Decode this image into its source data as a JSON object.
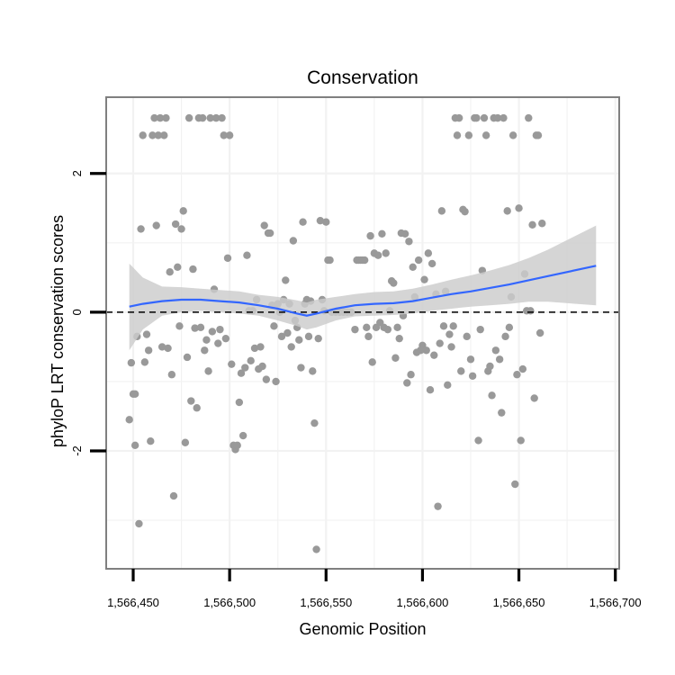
{
  "chart_data": {
    "type": "scatter",
    "title": "Conservation",
    "xlabel": "Genomic Position",
    "ylabel": "phyloP LRT conservation scores",
    "xlim": [
      1566436,
      1566702
    ],
    "ylim": [
      -3.7,
      3.1
    ],
    "x_ticks": [
      1566450,
      1566500,
      1566550,
      1566600,
      1566650,
      1566700
    ],
    "x_tick_labels": [
      "1,566,450",
      "1,566,500",
      "1,566,550",
      "1,566,600",
      "1,566,650",
      "1,566,700"
    ],
    "y_ticks": [
      -2,
      0,
      2
    ],
    "y_tick_labels": [
      "-2",
      "0",
      "2"
    ],
    "grid": true,
    "legend": "none",
    "colors": {
      "points": "#999999",
      "smooth_line": "#3366ff",
      "ribbon": "#cccccc",
      "reference_line": "#000000",
      "panel_border": "#7f7f7f",
      "grid": "#f2f2f2"
    },
    "reference_line_y": 0,
    "points": [
      {
        "x": 1566448,
        "y": -1.55
      },
      {
        "x": 1566449,
        "y": -0.73
      },
      {
        "x": 1566450,
        "y": -1.18
      },
      {
        "x": 1566451,
        "y": -1.92
      },
      {
        "x": 1566451,
        "y": -1.18
      },
      {
        "x": 1566452,
        "y": -0.35
      },
      {
        "x": 1566453,
        "y": -3.05
      },
      {
        "x": 1566454,
        "y": 1.2
      },
      {
        "x": 1566455,
        "y": 2.55
      },
      {
        "x": 1566456,
        "y": -0.72
      },
      {
        "x": 1566457,
        "y": -0.32
      },
      {
        "x": 1566458,
        "y": -0.55
      },
      {
        "x": 1566459,
        "y": -1.86
      },
      {
        "x": 1566460,
        "y": 2.55
      },
      {
        "x": 1566461,
        "y": 2.8
      },
      {
        "x": 1566462,
        "y": 1.25
      },
      {
        "x": 1566463,
        "y": 2.55
      },
      {
        "x": 1566464,
        "y": 2.8
      },
      {
        "x": 1566465,
        "y": -0.5
      },
      {
        "x": 1566466,
        "y": 2.55
      },
      {
        "x": 1566467,
        "y": 2.8
      },
      {
        "x": 1566468,
        "y": -0.52
      },
      {
        "x": 1566469,
        "y": 0.58
      },
      {
        "x": 1566470,
        "y": -0.9
      },
      {
        "x": 1566471,
        "y": -2.65
      },
      {
        "x": 1566472,
        "y": 1.27
      },
      {
        "x": 1566473,
        "y": 0.65
      },
      {
        "x": 1566474,
        "y": -0.2
      },
      {
        "x": 1566475,
        "y": 1.2
      },
      {
        "x": 1566476,
        "y": 1.46
      },
      {
        "x": 1566477,
        "y": -1.88
      },
      {
        "x": 1566478,
        "y": -0.65
      },
      {
        "x": 1566479,
        "y": 2.8
      },
      {
        "x": 1566480,
        "y": -1.28
      },
      {
        "x": 1566481,
        "y": 0.62
      },
      {
        "x": 1566482,
        "y": -0.23
      },
      {
        "x": 1566483,
        "y": -1.38
      },
      {
        "x": 1566484,
        "y": 2.8
      },
      {
        "x": 1566485,
        "y": -0.22
      },
      {
        "x": 1566486,
        "y": 2.8
      },
      {
        "x": 1566487,
        "y": -0.55
      },
      {
        "x": 1566488,
        "y": -0.4
      },
      {
        "x": 1566489,
        "y": -0.85
      },
      {
        "x": 1566490,
        "y": 2.8
      },
      {
        "x": 1566491,
        "y": -0.28
      },
      {
        "x": 1566492,
        "y": 0.33
      },
      {
        "x": 1566493,
        "y": 2.8
      },
      {
        "x": 1566494,
        "y": -0.45
      },
      {
        "x": 1566495,
        "y": -0.25
      },
      {
        "x": 1566496,
        "y": 2.8
      },
      {
        "x": 1566497,
        "y": 2.55
      },
      {
        "x": 1566498,
        "y": -0.38
      },
      {
        "x": 1566499,
        "y": 0.78
      },
      {
        "x": 1566500,
        "y": 2.55
      },
      {
        "x": 1566501,
        "y": -0.75
      },
      {
        "x": 1566502,
        "y": -1.92
      },
      {
        "x": 1566503,
        "y": -1.98
      },
      {
        "x": 1566504,
        "y": -1.92
      },
      {
        "x": 1566505,
        "y": -1.3
      },
      {
        "x": 1566506,
        "y": -0.88
      },
      {
        "x": 1566507,
        "y": -1.78
      },
      {
        "x": 1566508,
        "y": -0.8
      },
      {
        "x": 1566509,
        "y": 0.82
      },
      {
        "x": 1566510,
        "y": 0.02
      },
      {
        "x": 1566511,
        "y": -0.7
      },
      {
        "x": 1566512,
        "y": 0.02
      },
      {
        "x": 1566513,
        "y": -0.52
      },
      {
        "x": 1566514,
        "y": 0.18
      },
      {
        "x": 1566515,
        "y": -0.82
      },
      {
        "x": 1566516,
        "y": -0.5
      },
      {
        "x": 1566517,
        "y": -0.78
      },
      {
        "x": 1566518,
        "y": 1.25
      },
      {
        "x": 1566519,
        "y": -0.97
      },
      {
        "x": 1566520,
        "y": 1.14
      },
      {
        "x": 1566521,
        "y": 1.14
      },
      {
        "x": 1566522,
        "y": 0.1
      },
      {
        "x": 1566523,
        "y": -0.2
      },
      {
        "x": 1566524,
        "y": -1.0
      },
      {
        "x": 1566525,
        "y": 0.12
      },
      {
        "x": 1566526,
        "y": 0.0
      },
      {
        "x": 1566527,
        "y": -0.35
      },
      {
        "x": 1566528,
        "y": 0.18
      },
      {
        "x": 1566529,
        "y": 0.46
      },
      {
        "x": 1566530,
        "y": -0.3
      },
      {
        "x": 1566531,
        "y": 0.12
      },
      {
        "x": 1566532,
        "y": -0.5
      },
      {
        "x": 1566533,
        "y": 1.03
      },
      {
        "x": 1566534,
        "y": -0.12
      },
      {
        "x": 1566535,
        "y": -0.22
      },
      {
        "x": 1566536,
        "y": -0.4
      },
      {
        "x": 1566537,
        "y": -0.8
      },
      {
        "x": 1566538,
        "y": 1.3
      },
      {
        "x": 1566539,
        "y": 0.12
      },
      {
        "x": 1566540,
        "y": 0.18
      },
      {
        "x": 1566541,
        "y": -0.35
      },
      {
        "x": 1566542,
        "y": 0.16
      },
      {
        "x": 1566543,
        "y": -0.85
      },
      {
        "x": 1566544,
        "y": -1.6
      },
      {
        "x": 1566545,
        "y": -3.42
      },
      {
        "x": 1566546,
        "y": -0.38
      },
      {
        "x": 1566547,
        "y": 1.32
      },
      {
        "x": 1566548,
        "y": 0.18
      },
      {
        "x": 1566549,
        "y": 0.02
      },
      {
        "x": 1566550,
        "y": 1.3
      },
      {
        "x": 1566551,
        "y": 0.75
      },
      {
        "x": 1566552,
        "y": 0.75
      },
      {
        "x": 1566553,
        "y": 0.0
      },
      {
        "x": 1566555,
        "y": 0.0
      },
      {
        "x": 1566557,
        "y": 0.0
      },
      {
        "x": 1566559,
        "y": 0.0
      },
      {
        "x": 1566561,
        "y": 0.0
      },
      {
        "x": 1566563,
        "y": 0.0
      },
      {
        "x": 1566565,
        "y": -0.25
      },
      {
        "x": 1566566,
        "y": 0.75
      },
      {
        "x": 1566567,
        "y": 0.75
      },
      {
        "x": 1566568,
        "y": 0.75
      },
      {
        "x": 1566569,
        "y": 0.75
      },
      {
        "x": 1566570,
        "y": 0.75
      },
      {
        "x": 1566571,
        "y": -0.22
      },
      {
        "x": 1566572,
        "y": -0.35
      },
      {
        "x": 1566573,
        "y": 1.1
      },
      {
        "x": 1566574,
        "y": -0.72
      },
      {
        "x": 1566575,
        "y": 0.85
      },
      {
        "x": 1566576,
        "y": -0.22
      },
      {
        "x": 1566577,
        "y": 0.82
      },
      {
        "x": 1566578,
        "y": -0.15
      },
      {
        "x": 1566579,
        "y": 1.13
      },
      {
        "x": 1566580,
        "y": -0.22
      },
      {
        "x": 1566581,
        "y": 0.85
      },
      {
        "x": 1566582,
        "y": -0.25
      },
      {
        "x": 1566583,
        "y": 0.02
      },
      {
        "x": 1566584,
        "y": 0.45
      },
      {
        "x": 1566585,
        "y": 0.42
      },
      {
        "x": 1566586,
        "y": -0.66
      },
      {
        "x": 1566587,
        "y": -0.22
      },
      {
        "x": 1566588,
        "y": -0.38
      },
      {
        "x": 1566589,
        "y": 1.14
      },
      {
        "x": 1566590,
        "y": -0.05
      },
      {
        "x": 1566591,
        "y": 1.13
      },
      {
        "x": 1566592,
        "y": -1.02
      },
      {
        "x": 1566593,
        "y": 1.02
      },
      {
        "x": 1566594,
        "y": -0.9
      },
      {
        "x": 1566595,
        "y": 0.65
      },
      {
        "x": 1566596,
        "y": 0.22
      },
      {
        "x": 1566597,
        "y": -0.58
      },
      {
        "x": 1566598,
        "y": 0.75
      },
      {
        "x": 1566599,
        "y": -0.55
      },
      {
        "x": 1566600,
        "y": -0.48
      },
      {
        "x": 1566601,
        "y": 0.47
      },
      {
        "x": 1566602,
        "y": -0.55
      },
      {
        "x": 1566603,
        "y": 0.85
      },
      {
        "x": 1566604,
        "y": -1.12
      },
      {
        "x": 1566605,
        "y": 0.7
      },
      {
        "x": 1566606,
        "y": -0.62
      },
      {
        "x": 1566607,
        "y": 0.26
      },
      {
        "x": 1566608,
        "y": -2.8
      },
      {
        "x": 1566609,
        "y": -0.45
      },
      {
        "x": 1566610,
        "y": 1.46
      },
      {
        "x": 1566611,
        "y": -0.2
      },
      {
        "x": 1566612,
        "y": 0.3
      },
      {
        "x": 1566613,
        "y": -1.05
      },
      {
        "x": 1566614,
        "y": -0.32
      },
      {
        "x": 1566615,
        "y": -0.5
      },
      {
        "x": 1566616,
        "y": -0.2
      },
      {
        "x": 1566617,
        "y": 2.8
      },
      {
        "x": 1566618,
        "y": 2.55
      },
      {
        "x": 1566619,
        "y": 2.8
      },
      {
        "x": 1566620,
        "y": -0.85
      },
      {
        "x": 1566621,
        "y": 1.48
      },
      {
        "x": 1566622,
        "y": 1.45
      },
      {
        "x": 1566623,
        "y": -0.35
      },
      {
        "x": 1566624,
        "y": 2.55
      },
      {
        "x": 1566625,
        "y": -0.68
      },
      {
        "x": 1566626,
        "y": -0.92
      },
      {
        "x": 1566627,
        "y": 2.8
      },
      {
        "x": 1566628,
        "y": 2.8
      },
      {
        "x": 1566629,
        "y": -1.85
      },
      {
        "x": 1566630,
        "y": -0.25
      },
      {
        "x": 1566631,
        "y": 0.6
      },
      {
        "x": 1566632,
        "y": 2.8
      },
      {
        "x": 1566633,
        "y": 2.55
      },
      {
        "x": 1566634,
        "y": -0.85
      },
      {
        "x": 1566635,
        "y": -0.78
      },
      {
        "x": 1566636,
        "y": -1.2
      },
      {
        "x": 1566637,
        "y": 2.8
      },
      {
        "x": 1566638,
        "y": -0.55
      },
      {
        "x": 1566639,
        "y": 2.8
      },
      {
        "x": 1566640,
        "y": -0.68
      },
      {
        "x": 1566641,
        "y": -1.45
      },
      {
        "x": 1566642,
        "y": 2.8
      },
      {
        "x": 1566643,
        "y": -0.35
      },
      {
        "x": 1566644,
        "y": 1.46
      },
      {
        "x": 1566645,
        "y": -0.22
      },
      {
        "x": 1566646,
        "y": 0.22
      },
      {
        "x": 1566647,
        "y": 2.55
      },
      {
        "x": 1566648,
        "y": -2.48
      },
      {
        "x": 1566649,
        "y": -0.9
      },
      {
        "x": 1566650,
        "y": 1.5
      },
      {
        "x": 1566651,
        "y": -1.85
      },
      {
        "x": 1566652,
        "y": -0.82
      },
      {
        "x": 1566653,
        "y": 0.55
      },
      {
        "x": 1566654,
        "y": 0.02
      },
      {
        "x": 1566655,
        "y": 2.8
      },
      {
        "x": 1566656,
        "y": 0.02
      },
      {
        "x": 1566657,
        "y": 1.26
      },
      {
        "x": 1566658,
        "y": -1.24
      },
      {
        "x": 1566659,
        "y": 2.55
      },
      {
        "x": 1566660,
        "y": 2.55
      },
      {
        "x": 1566661,
        "y": -0.3
      },
      {
        "x": 1566662,
        "y": 1.28
      }
    ],
    "smooth_fit": {
      "x": [
        1566448,
        1566455,
        1566465,
        1566475,
        1566485,
        1566495,
        1566505,
        1566515,
        1566525,
        1566535,
        1566540,
        1566545,
        1566555,
        1566565,
        1566575,
        1566585,
        1566595,
        1566605,
        1566615,
        1566625,
        1566635,
        1566645,
        1566655,
        1566665,
        1566690
      ],
      "y": [
        0.08,
        0.12,
        0.16,
        0.18,
        0.18,
        0.16,
        0.14,
        0.1,
        0.05,
        -0.02,
        -0.05,
        -0.02,
        0.05,
        0.1,
        0.12,
        0.13,
        0.16,
        0.21,
        0.26,
        0.3,
        0.35,
        0.4,
        0.46,
        0.52,
        0.67
      ],
      "lower": [
        -0.55,
        -0.25,
        -0.05,
        0.0,
        0.02,
        0.0,
        -0.02,
        -0.05,
        -0.12,
        -0.2,
        -0.25,
        -0.22,
        -0.12,
        -0.06,
        -0.05,
        -0.04,
        -0.02,
        0.02,
        0.05,
        0.08,
        0.1,
        0.12,
        0.15,
        0.15,
        0.1
      ],
      "upper": [
        0.7,
        0.5,
        0.37,
        0.36,
        0.34,
        0.32,
        0.3,
        0.25,
        0.22,
        0.17,
        0.14,
        0.18,
        0.22,
        0.26,
        0.29,
        0.3,
        0.34,
        0.4,
        0.47,
        0.53,
        0.6,
        0.68,
        0.78,
        0.9,
        1.25
      ]
    }
  }
}
